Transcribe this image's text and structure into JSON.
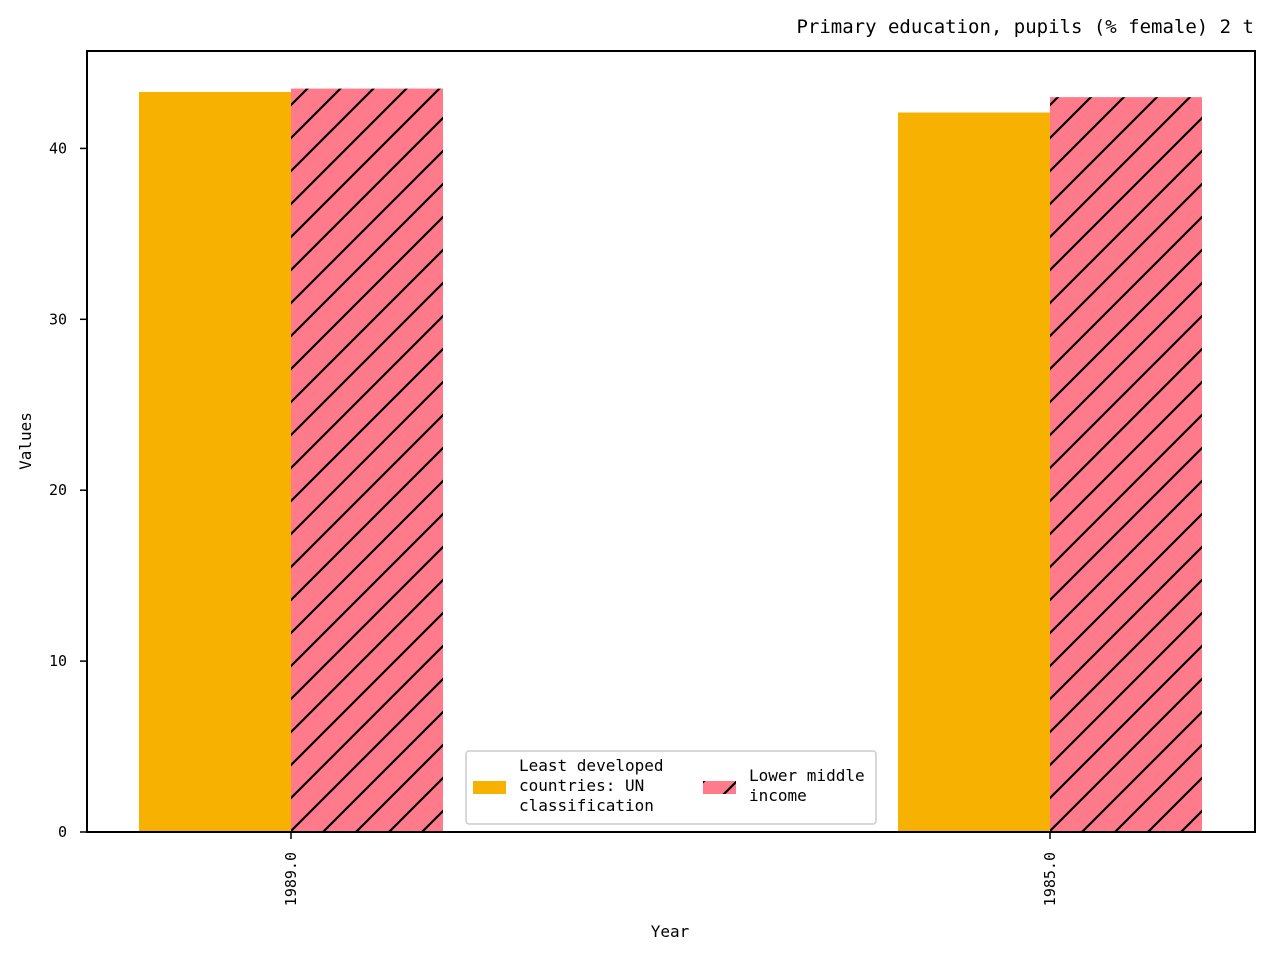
{
  "chart_data": {
    "type": "bar",
    "title": "Primary education, pupils (% female) 2 t",
    "xlabel": "Year",
    "ylabel": "Values",
    "categories": [
      "1989.0",
      "1985.0"
    ],
    "series": [
      {
        "name": "Least developed countries: UN classification",
        "values": [
          43.3,
          42.1
        ],
        "color": "#f7b100",
        "hatch": false
      },
      {
        "name": "Lower middle income",
        "values": [
          43.5,
          43.0
        ],
        "color": "#ff7a8a",
        "hatch": true
      }
    ],
    "ylim": [
      0,
      45.7
    ],
    "yticks": [
      "0",
      "10",
      "20",
      "30",
      "40"
    ],
    "grid": false,
    "legend_position": "bottom-center",
    "legend_lines": [
      [
        "Least developed",
        "countries: UN",
        "classification"
      ],
      [
        "Lower middle",
        "income"
      ]
    ]
  }
}
